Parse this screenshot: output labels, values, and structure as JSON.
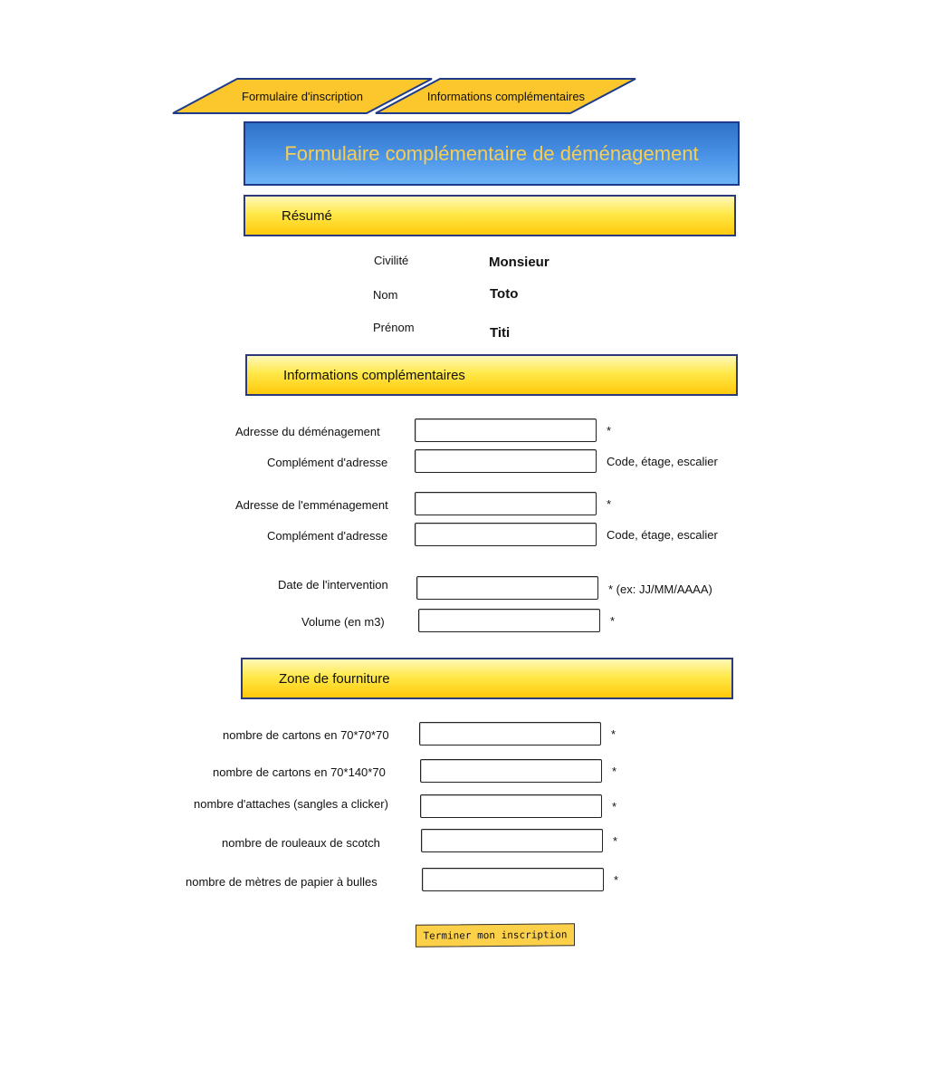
{
  "tabs": [
    {
      "label": "Formulaire d'inscription"
    },
    {
      "label": "Informations complémentaires"
    }
  ],
  "page_title": "Formulaire complémentaire de déménagement",
  "summary": {
    "header": "Résumé",
    "rows": [
      {
        "label": "Civilité",
        "value": "Monsieur"
      },
      {
        "label": "Nom",
        "value": "Toto"
      },
      {
        "label": "Prénom",
        "value": "Titi"
      }
    ]
  },
  "extra_info": {
    "header": "Informations complémentaires",
    "fields": [
      {
        "label": "Adresse du déménagement",
        "value": "",
        "hint": "*"
      },
      {
        "label": "Complément d'adresse",
        "value": "",
        "hint": "Code, étage, escalier"
      },
      {
        "label": "Adresse de l'emménagement",
        "value": "",
        "hint": "*"
      },
      {
        "label": "Complément d'adresse",
        "value": "",
        "hint": "Code, étage, escalier"
      },
      {
        "label": "Date de l'intervention",
        "value": "",
        "hint": "* (ex: JJ/MM/AAAA)"
      },
      {
        "label": "Volume (en m3)",
        "value": "",
        "hint": "*"
      }
    ]
  },
  "supplies": {
    "header": "Zone de fourniture",
    "fields": [
      {
        "label": "nombre de cartons en 70*70*70",
        "value": "",
        "hint": "*"
      },
      {
        "label": "nombre de cartons en 70*140*70",
        "value": "",
        "hint": "*"
      },
      {
        "label": "nombre d'attaches (sangles a clicker)",
        "value": "",
        "hint": "*"
      },
      {
        "label": "nombre de rouleaux de scotch",
        "value": "",
        "hint": "*"
      },
      {
        "label": "nombre de mètres de papier à bulles",
        "value": "",
        "hint": "*"
      }
    ]
  },
  "submit_label": "Terminer mon inscription",
  "colors": {
    "tab_fill": "#fcc72d",
    "tab_border": "#1e3a8a",
    "title_text": "#f6cd55",
    "section_yellow": "#ffd21f"
  }
}
